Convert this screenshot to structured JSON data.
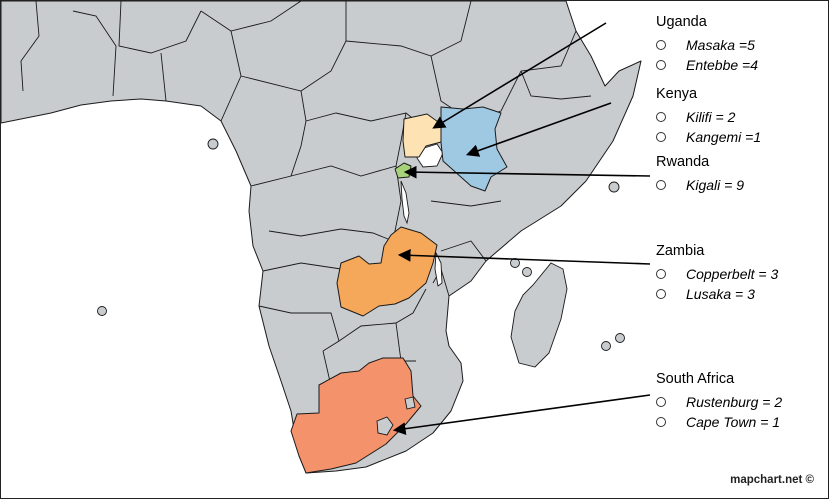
{
  "map": {
    "base_color": "#c9cccf",
    "border_color": "#1a1a1a",
    "highlighted": [
      {
        "name": "Uganda",
        "color": "#fde2b4"
      },
      {
        "name": "Kenya",
        "color": "#9fc8e3"
      },
      {
        "name": "Rwanda",
        "color": "#a6d27a"
      },
      {
        "name": "Zambia",
        "color": "#f6a85a"
      },
      {
        "name": "South Africa",
        "color": "#f4926b"
      }
    ]
  },
  "legend": [
    {
      "country": "Uganda",
      "sites": [
        "Masaka =5",
        "Entebbe =4"
      ]
    },
    {
      "country": "Kenya",
      "sites": [
        "Kilifi = 2",
        "Kangemi =1"
      ]
    },
    {
      "country": "Rwanda",
      "sites": [
        "Kigali = 9"
      ]
    },
    {
      "country": "Zambia",
      "sites": [
        "Copperbelt = 3",
        "Lusaka = 3"
      ]
    },
    {
      "country": "South Africa",
      "sites": [
        "Rustenburg = 2",
        "Cape Town = 1"
      ]
    }
  ],
  "credit": "mapchart.net ©"
}
